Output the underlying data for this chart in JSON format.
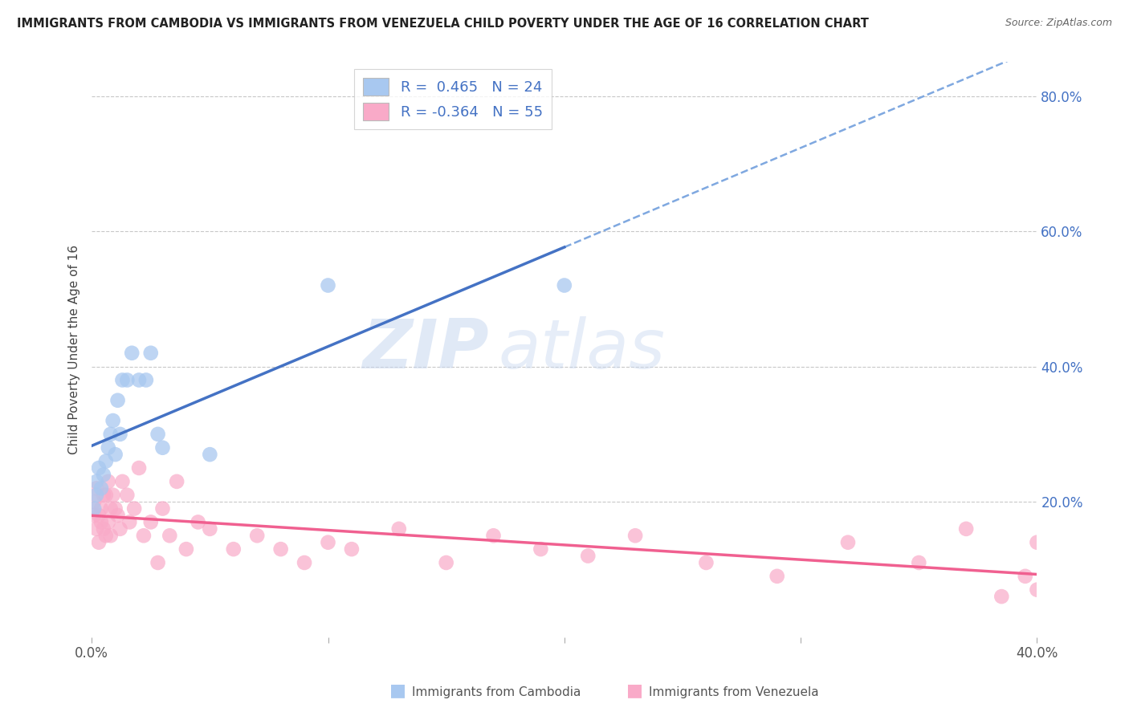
{
  "title": "IMMIGRANTS FROM CAMBODIA VS IMMIGRANTS FROM VENEZUELA CHILD POVERTY UNDER THE AGE OF 16 CORRELATION CHART",
  "source": "Source: ZipAtlas.com",
  "ylabel": "Child Poverty Under the Age of 16",
  "ylabel_right_ticks": [
    "20.0%",
    "40.0%",
    "60.0%",
    "80.0%"
  ],
  "ylabel_right_vals": [
    0.2,
    0.4,
    0.6,
    0.8
  ],
  "color_cambodia": "#a8c8f0",
  "color_venezuela": "#f9aac8",
  "line_color_cambodia": "#4472c4",
  "line_color_venezuela": "#f06090",
  "line_color_dashed": "#7fa8e0",
  "watermark_zip": "ZIP",
  "watermark_atlas": "atlas",
  "cambodia_x": [
    0.001,
    0.002,
    0.002,
    0.003,
    0.004,
    0.005,
    0.006,
    0.007,
    0.008,
    0.009,
    0.01,
    0.011,
    0.012,
    0.013,
    0.015,
    0.017,
    0.02,
    0.023,
    0.025,
    0.028,
    0.03,
    0.05,
    0.1,
    0.2
  ],
  "cambodia_y": [
    0.19,
    0.21,
    0.23,
    0.25,
    0.22,
    0.24,
    0.26,
    0.28,
    0.3,
    0.32,
    0.27,
    0.35,
    0.3,
    0.38,
    0.38,
    0.42,
    0.38,
    0.38,
    0.42,
    0.3,
    0.28,
    0.27,
    0.52,
    0.52
  ],
  "venezuela_x": [
    0.001,
    0.001,
    0.002,
    0.002,
    0.003,
    0.003,
    0.004,
    0.004,
    0.005,
    0.005,
    0.006,
    0.006,
    0.007,
    0.007,
    0.008,
    0.008,
    0.009,
    0.01,
    0.011,
    0.012,
    0.013,
    0.015,
    0.016,
    0.018,
    0.02,
    0.022,
    0.025,
    0.028,
    0.03,
    0.033,
    0.036,
    0.04,
    0.045,
    0.05,
    0.06,
    0.07,
    0.08,
    0.09,
    0.1,
    0.11,
    0.13,
    0.15,
    0.17,
    0.19,
    0.21,
    0.23,
    0.26,
    0.29,
    0.32,
    0.35,
    0.37,
    0.385,
    0.395,
    0.4,
    0.4
  ],
  "venezuela_y": [
    0.2,
    0.18,
    0.22,
    0.16,
    0.18,
    0.14,
    0.19,
    0.17,
    0.16,
    0.21,
    0.15,
    0.21,
    0.17,
    0.23,
    0.15,
    0.19,
    0.21,
    0.19,
    0.18,
    0.16,
    0.23,
    0.21,
    0.17,
    0.19,
    0.25,
    0.15,
    0.17,
    0.11,
    0.19,
    0.15,
    0.23,
    0.13,
    0.17,
    0.16,
    0.13,
    0.15,
    0.13,
    0.11,
    0.14,
    0.13,
    0.16,
    0.11,
    0.15,
    0.13,
    0.12,
    0.15,
    0.11,
    0.09,
    0.14,
    0.11,
    0.16,
    0.06,
    0.09,
    0.14,
    0.07
  ],
  "xlim": [
    0.0,
    0.4
  ],
  "ylim": [
    0.0,
    0.85
  ],
  "solid_line_x_end": 0.2,
  "background_color": "#ffffff",
  "grid_color": "#c8c8c8"
}
